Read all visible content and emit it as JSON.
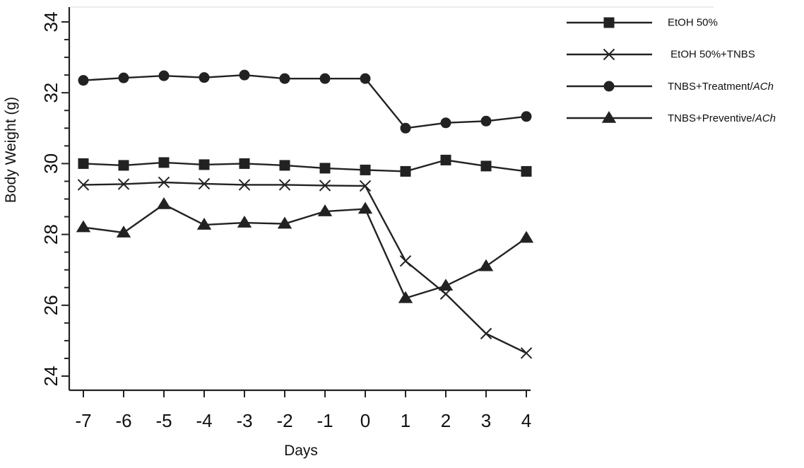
{
  "chart_data": {
    "type": "line",
    "title": "",
    "xlabel": "Days",
    "ylabel": "Body Weight (g)",
    "x": [
      -7,
      -6,
      -5,
      -4,
      -3,
      -2,
      -1,
      0,
      1,
      2,
      3,
      4
    ],
    "xlim": [
      -7,
      4
    ],
    "ylim": [
      24,
      34
    ],
    "x_ticks": [
      "-7",
      "-6",
      "-5",
      "-4",
      "-3",
      "-2",
      "-1",
      "0",
      "1",
      "2",
      "3",
      "4"
    ],
    "y_ticks": [
      "24",
      "26",
      "28",
      "30",
      "32",
      "34"
    ],
    "grid": false,
    "legend_position": "top-right",
    "line_color": "#222222",
    "series": [
      {
        "name": "EtOH 50%",
        "marker": "square",
        "values": [
          30.0,
          29.95,
          30.03,
          29.97,
          30.0,
          29.95,
          29.87,
          29.82,
          29.78,
          30.1,
          29.93,
          29.78
        ]
      },
      {
        "name": " EtOH 50%+TNBS",
        "marker": "x",
        "values": [
          29.4,
          29.42,
          29.47,
          29.43,
          29.4,
          29.4,
          29.38,
          29.37,
          27.25,
          26.32,
          25.2,
          24.65
        ]
      },
      {
        "name": "TNBS+Treatment/ACh",
        "name_prefix": "TNBS+Treatment/",
        "name_italic": "ACh",
        "marker": "circle",
        "values": [
          32.35,
          32.42,
          32.48,
          32.43,
          32.5,
          32.4,
          32.4,
          32.4,
          31.0,
          31.15,
          31.2,
          31.33
        ]
      },
      {
        "name": "TNBS+Preventive/ACh",
        "name_prefix": "TNBS+Preventive/",
        "name_italic": "ACh",
        "marker": "triangle",
        "values": [
          28.2,
          28.05,
          28.85,
          28.27,
          28.33,
          28.3,
          28.65,
          28.72,
          26.2,
          26.55,
          27.1,
          27.9
        ]
      }
    ]
  }
}
